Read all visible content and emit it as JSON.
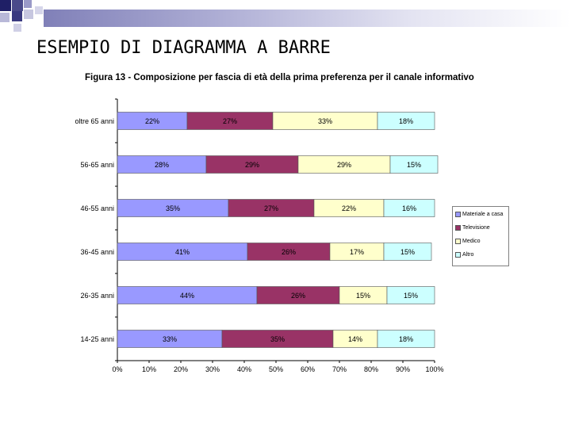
{
  "slide": {
    "title": "ESEMPIO DI DIAGRAMMA A BARRE"
  },
  "chart_data": {
    "type": "bar",
    "orientation": "horizontal",
    "stacked": "percent",
    "title": "Figura 13 - Composizione per fascia di età della prima preferenza per il canale informativo",
    "categories": [
      "oltre 65 anni",
      "56-65 anni",
      "46-55 anni",
      "36-45 anni",
      "26-35 anni",
      "14-25 anni"
    ],
    "series": [
      {
        "name": "Materiale a casa",
        "color": "#9999ff",
        "values": [
          22,
          28,
          35,
          41,
          44,
          33
        ]
      },
      {
        "name": "Televisione",
        "color": "#993366",
        "values": [
          27,
          29,
          27,
          26,
          26,
          35
        ]
      },
      {
        "name": "Medico",
        "color": "#ffffcc",
        "values": [
          33,
          29,
          22,
          17,
          15,
          14
        ]
      },
      {
        "name": "Altro",
        "color": "#ccffff",
        "values": [
          18,
          15,
          16,
          15,
          15,
          18
        ]
      }
    ],
    "xticks": [
      "0%",
      "10%",
      "20%",
      "30%",
      "40%",
      "50%",
      "60%",
      "70%",
      "80%",
      "90%",
      "100%"
    ],
    "xlim": [
      0,
      100
    ],
    "grid": false,
    "legend": "right"
  }
}
